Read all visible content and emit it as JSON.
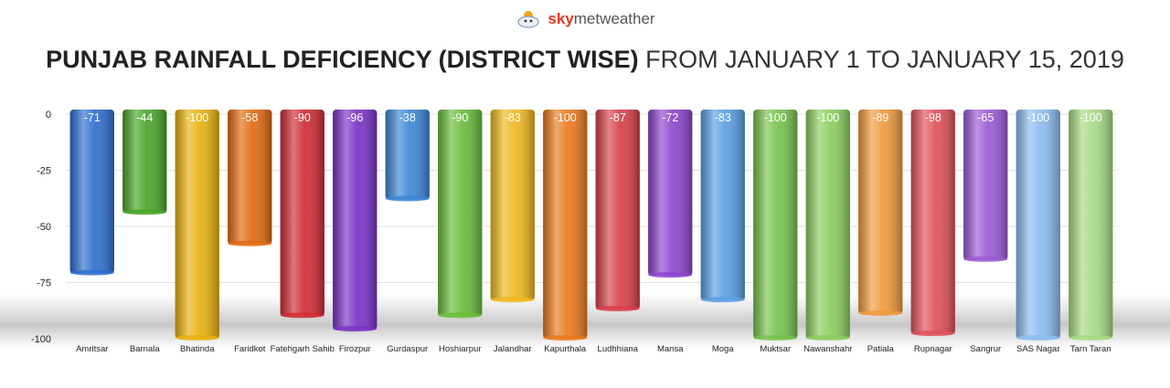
{
  "brand": {
    "prefix": "sky",
    "suffix": "metweather",
    "logo_icon": "cloud-sun-icon"
  },
  "title": {
    "bold": "PUNJAB RAINFALL DEFICIENCY (DISTRICT WISE)",
    "light": " FROM JANUARY 1 TO JANUARY 15, 2019"
  },
  "chart_data": {
    "type": "bar",
    "title": "PUNJAB RAINFALL DEFICIENCY (DISTRICT WISE) FROM JANUARY 1 TO JANUARY 15, 2019",
    "xlabel": "",
    "ylabel": "",
    "ylim": [
      -100,
      0
    ],
    "yticks": [
      0,
      -25,
      -50,
      -75,
      -100
    ],
    "grid": true,
    "legend": "none",
    "categories": [
      "Amritsar",
      "Barnala",
      "Bhatinda",
      "Faridkot",
      "Fatehgarh Sahib",
      "Firozpur",
      "Gurdaspur",
      "Hoshiarpur",
      "Jalandhar",
      "Kapurthala",
      "Ludhhiana",
      "Mansa",
      "Moga",
      "Muktsar",
      "Nawanshahr",
      "Patiala",
      "Rupnagar",
      "Sangrur",
      "SAS Nagar",
      "Tarn Taran"
    ],
    "values": [
      -71,
      -44,
      -100,
      -58,
      -90,
      -96,
      -38,
      -90,
      -83,
      -100,
      -87,
      -72,
      -83,
      -100,
      -100,
      -89,
      -98,
      -65,
      -100,
      -100
    ],
    "colors": [
      "#2f6fd1",
      "#4aa52a",
      "#e8b20f",
      "#e26a10",
      "#d02b34",
      "#7a32c7",
      "#3c86d6",
      "#6bbd3b",
      "#efb81f",
      "#ea7a1c",
      "#d9404a",
      "#8d45cf",
      "#5a9fe4",
      "#78c24e",
      "#8dce5f",
      "#f09a3c",
      "#e0515a",
      "#9b5ad6",
      "#8cbcf0",
      "#a6da84"
    ]
  }
}
